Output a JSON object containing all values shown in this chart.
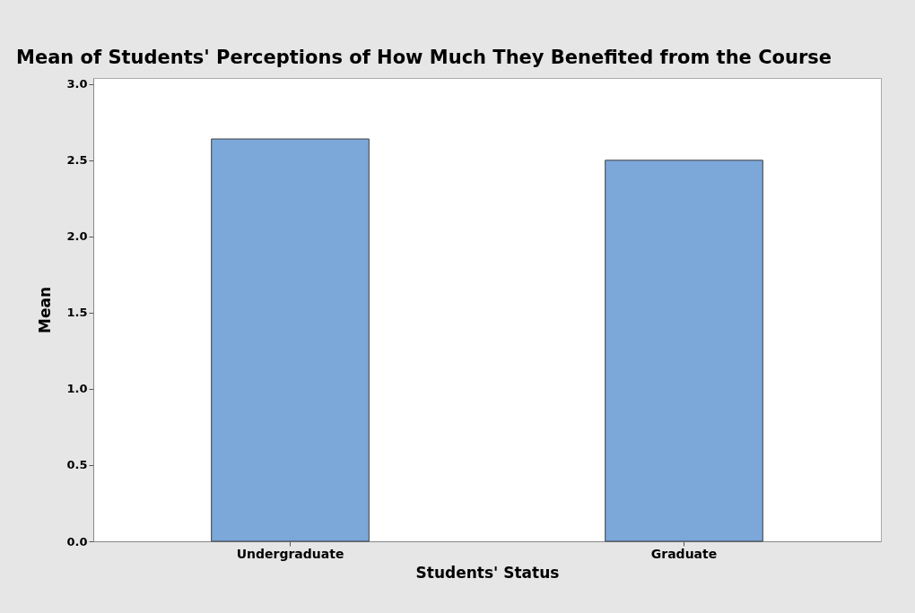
{
  "chart_data": {
    "type": "bar",
    "title": "Mean of Students' Perceptions of How Much They Benefited from the Course",
    "xlabel": "Students' Status",
    "ylabel": "Mean",
    "categories": [
      "Undergraduate",
      "Graduate"
    ],
    "values": [
      2.64,
      2.5
    ],
    "color": "#7ba7d9",
    "ylim": [
      0,
      3.04
    ],
    "yticks": [
      {
        "value": 0,
        "label": "0.0"
      },
      {
        "value": 0.5,
        "label": "0.5"
      },
      {
        "value": 1,
        "label": "1.0"
      },
      {
        "value": 1.5,
        "label": "1.5"
      },
      {
        "value": 2,
        "label": "2.0"
      },
      {
        "value": 2.5,
        "label": "2.5"
      },
      {
        "value": 3,
        "label": "3.0"
      }
    ]
  }
}
